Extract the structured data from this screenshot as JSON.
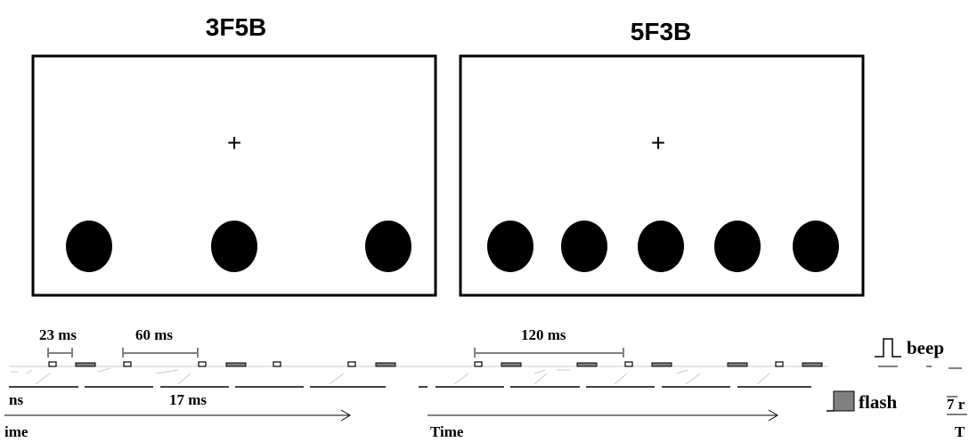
{
  "panels": [
    {
      "title": "3F5B",
      "flashes": 3,
      "beeps": 5
    },
    {
      "title": "5F3B",
      "flashes": 5,
      "beeps": 3
    }
  ],
  "fixation_symbol": "+",
  "annotations": {
    "flash_duration": "23 ms",
    "beep_duration": "17 ms",
    "interval_3f": "60 ms",
    "interval_5f": "120 ms",
    "cut_label_left": "ns",
    "cut_label_right": "7 r"
  },
  "axis": {
    "label": "Time",
    "label_cut_left": "ime",
    "label_cut_right": "T"
  },
  "legend": {
    "beep": "beep",
    "flash": "flash"
  },
  "colors": {
    "flash_fill": "#808080",
    "frame": "#000000",
    "background": "#ffffff"
  }
}
